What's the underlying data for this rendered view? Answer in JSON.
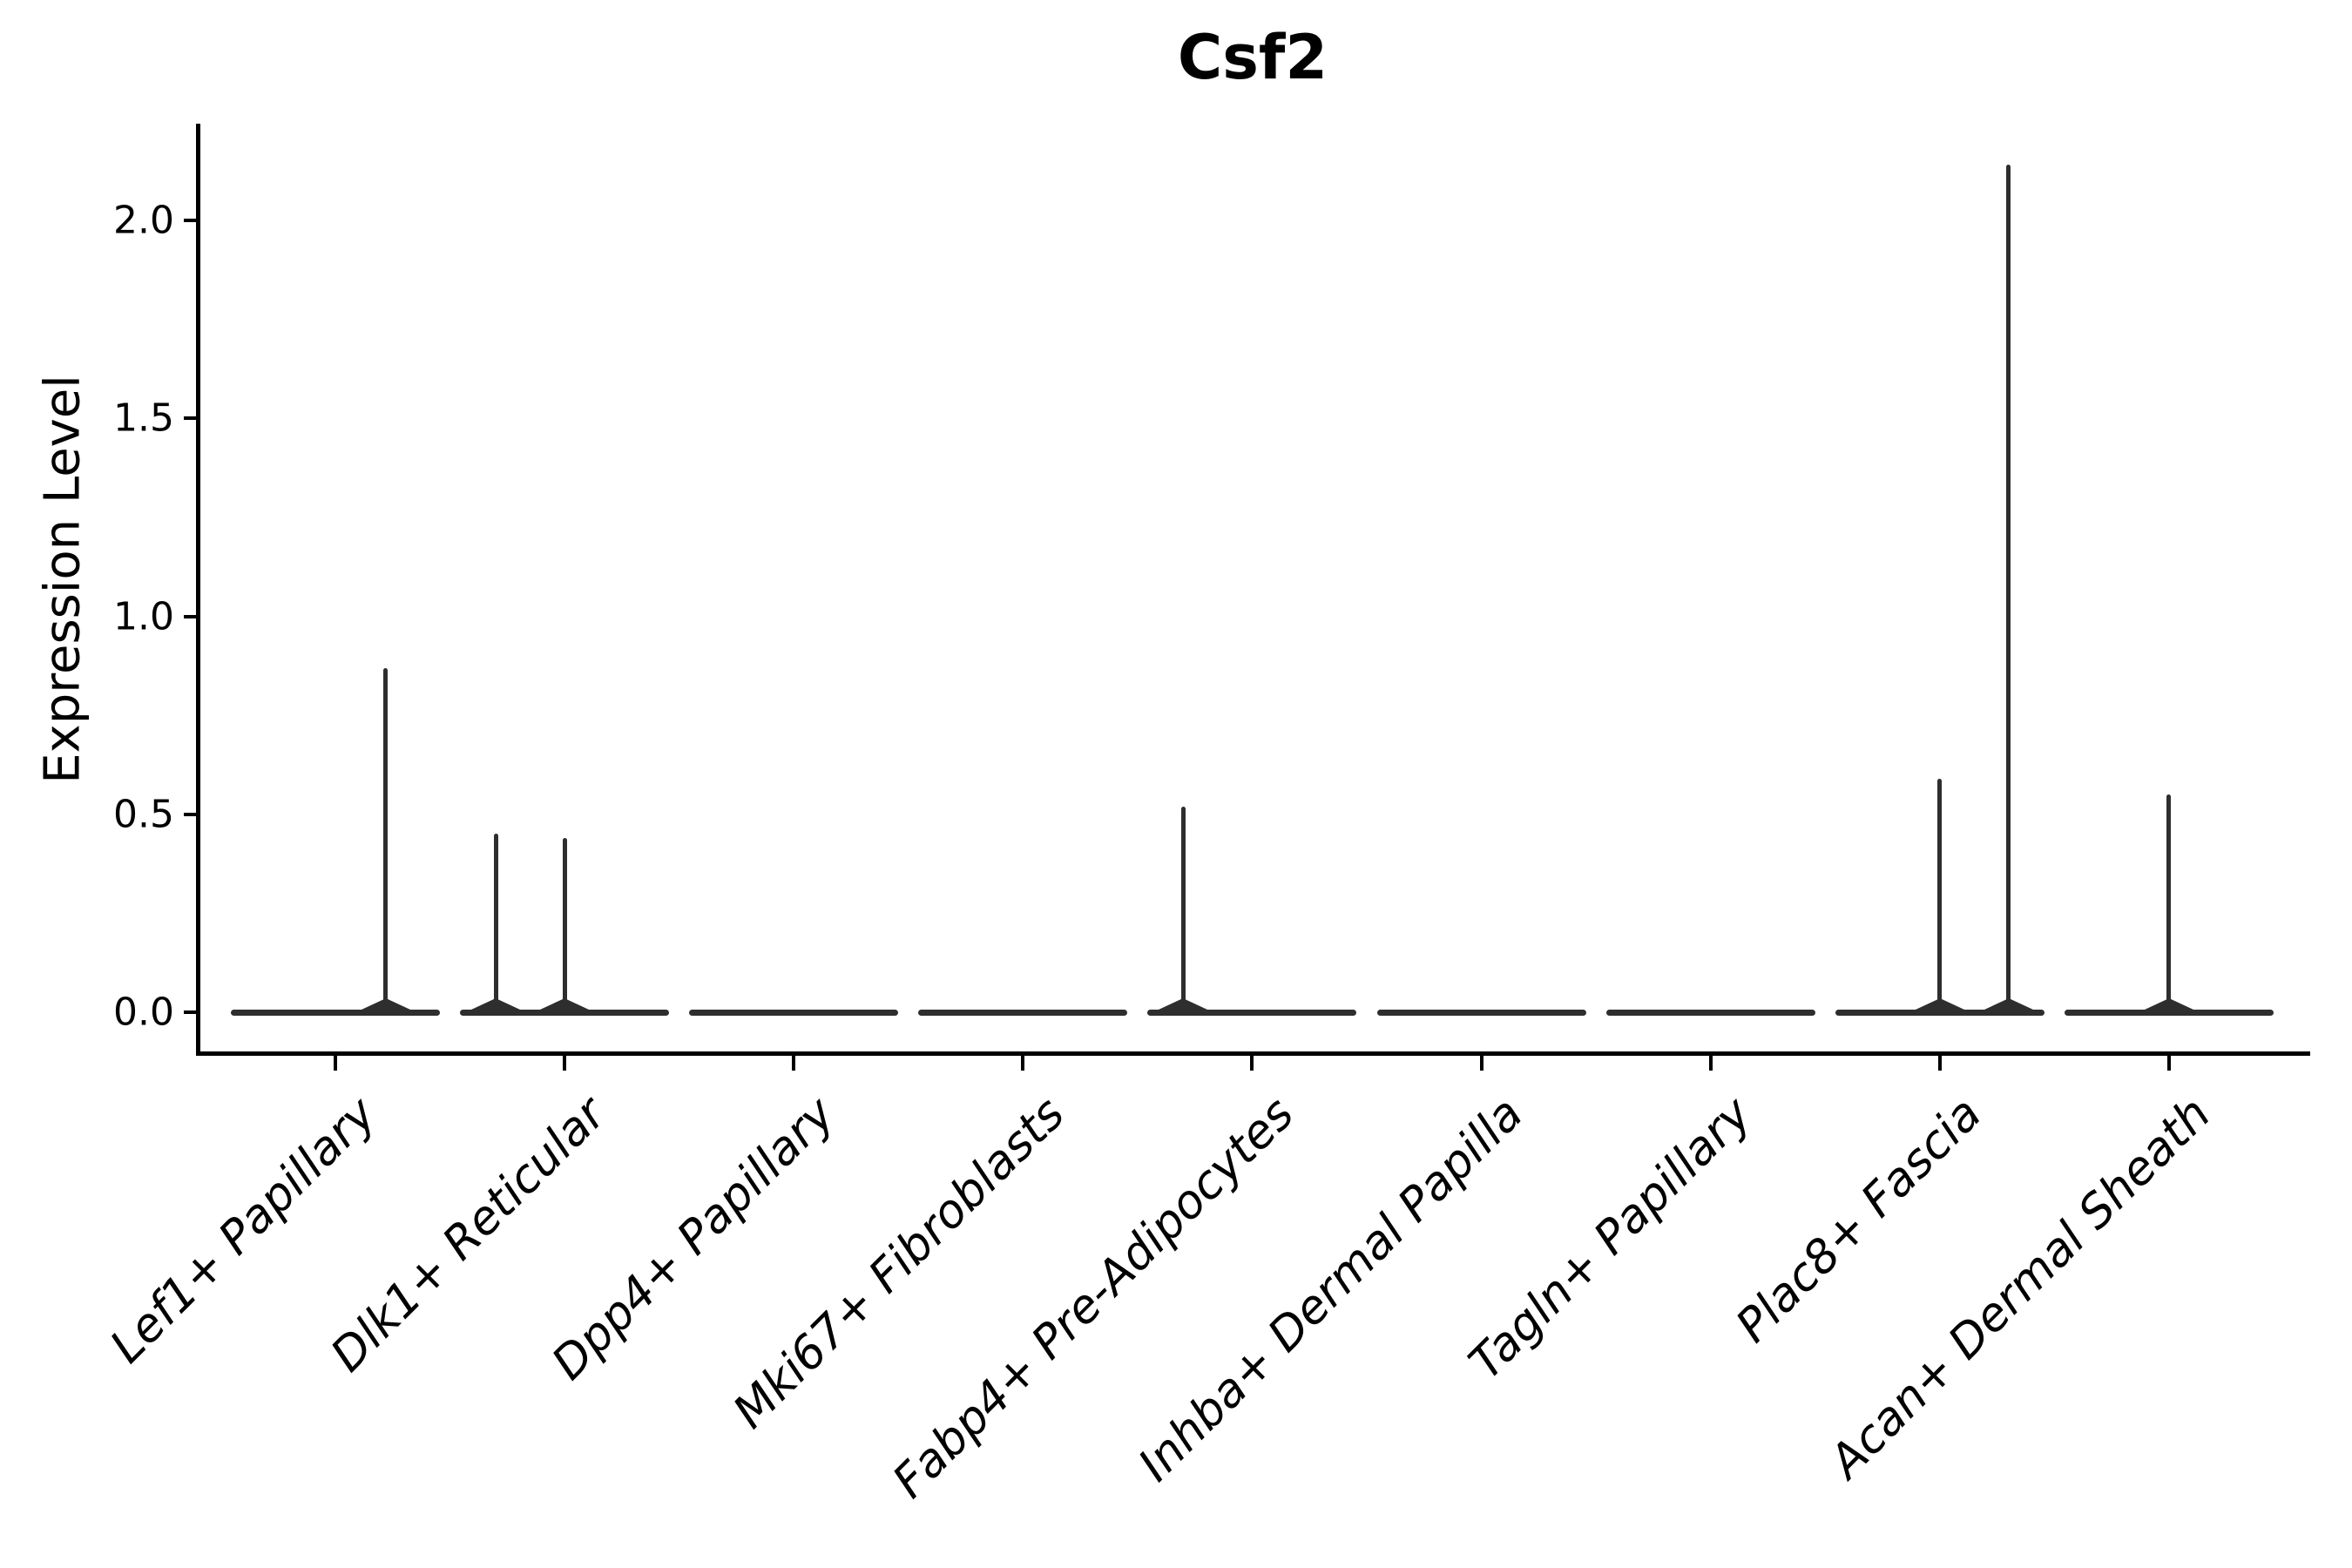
{
  "title": "Csf2",
  "axes": {
    "y_label": "Expression Level",
    "y_tick_labels": [
      "0.0",
      "0.5",
      "1.0",
      "1.5",
      "2.0"
    ]
  },
  "colors": {
    "violin_line": "#2e2e2e",
    "spine": "#000000",
    "background": "#ffffff"
  },
  "chart_data": {
    "type": "violin",
    "title": "Csf2",
    "xlabel": "",
    "ylabel": "Expression Level",
    "y_ticks": [
      0.0,
      0.5,
      1.0,
      1.5,
      2.0
    ],
    "ylim": [
      -0.105,
      2.245
    ],
    "grid": false,
    "legend": "none",
    "categories": [
      "Lef1+ Papillary",
      "Dlk1+ Reticular",
      "Dpp4+ Papillary",
      "Mki67+ Fibroblasts",
      "Fabp4+ Pre-Adipocytes",
      "Inhba+ Dermal Papilla",
      "Tagln+ Papillary",
      "Plac8+ Fascia",
      "Acan+ Dermal Sheath"
    ],
    "violins": [
      {
        "category": "Lef1+ Papillary",
        "baseline_value": 0,
        "spikes": [
          {
            "value": 0.87,
            "offset_frac": 0.22
          }
        ]
      },
      {
        "category": "Dlk1+ Reticular",
        "baseline_value": 0,
        "spikes": [
          {
            "value": 0.45,
            "offset_frac": -0.3
          },
          {
            "value": 0.44,
            "offset_frac": 0.0
          }
        ]
      },
      {
        "category": "Dpp4+ Papillary",
        "baseline_value": 0,
        "spikes": []
      },
      {
        "category": "Mki67+ Fibroblasts",
        "baseline_value": 0,
        "spikes": []
      },
      {
        "category": "Fabp4+ Pre-Adipocytes",
        "baseline_value": 0,
        "spikes": [
          {
            "value": 0.52,
            "offset_frac": -0.3
          }
        ]
      },
      {
        "category": "Inhba+ Dermal Papilla",
        "baseline_value": 0,
        "spikes": []
      },
      {
        "category": "Tagln+ Papillary",
        "baseline_value": 0,
        "spikes": []
      },
      {
        "category": "Plac8+ Fascia",
        "baseline_value": 0,
        "spikes": [
          {
            "value": 0.59,
            "offset_frac": 0.0
          },
          {
            "value": 2.14,
            "offset_frac": 0.3
          }
        ]
      },
      {
        "category": "Acan+ Dermal Sheath",
        "baseline_value": 0,
        "spikes": [
          {
            "value": 0.55,
            "offset_frac": 0.0
          }
        ]
      }
    ]
  }
}
